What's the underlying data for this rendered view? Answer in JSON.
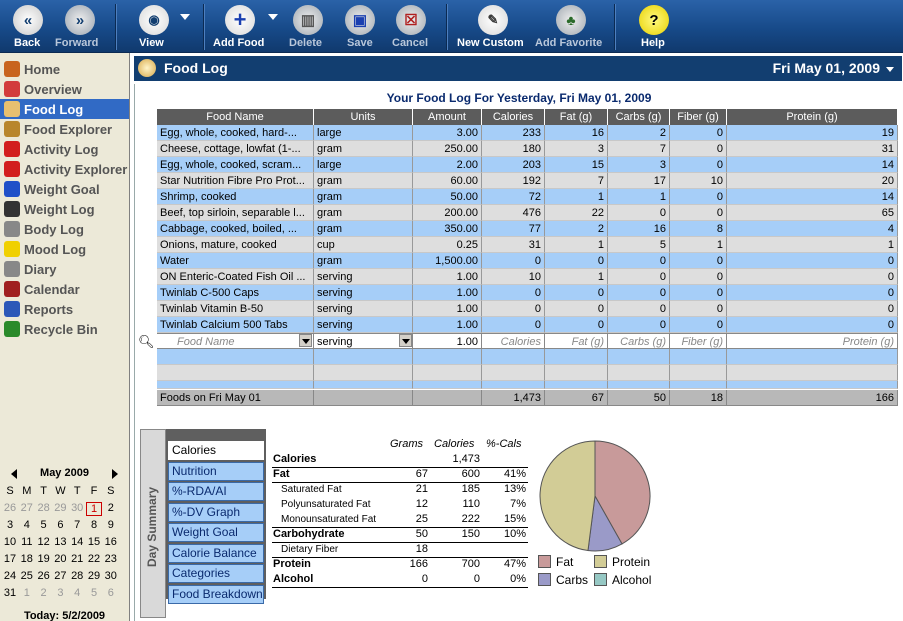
{
  "toolbar": {
    "back": "Back",
    "forward": "Forward",
    "view": "View",
    "add_food": "Add Food",
    "delete": "Delete",
    "save": "Save",
    "cancel": "Cancel",
    "new_custom": "New Custom",
    "add_favorite": "Add Favorite",
    "help": "Help"
  },
  "sidebar": {
    "items": [
      {
        "label": "Home",
        "icon": "home-icon",
        "color": "#c8641e"
      },
      {
        "label": "Overview",
        "icon": "overview-pie-icon",
        "color": "#d23c3c"
      },
      {
        "label": "Food Log",
        "icon": "bowl-icon",
        "color": "#e8c070"
      },
      {
        "label": "Food Explorer",
        "icon": "food-search-icon",
        "color": "#b8862c"
      },
      {
        "label": "Activity Log",
        "icon": "runner-icon",
        "color": "#d21e1e"
      },
      {
        "label": "Activity Explorer",
        "icon": "runner-search-icon",
        "color": "#d21e1e"
      },
      {
        "label": "Weight Goal",
        "icon": "target-icon",
        "color": "#2050c8"
      },
      {
        "label": "Weight Log",
        "icon": "scale-icon",
        "color": "#333333"
      },
      {
        "label": "Body Log",
        "icon": "body-icon",
        "color": "#888888"
      },
      {
        "label": "Mood Log",
        "icon": "smiley-icon",
        "color": "#f0d000"
      },
      {
        "label": "Diary",
        "icon": "diary-icon",
        "color": "#888888"
      },
      {
        "label": "Calendar",
        "icon": "calendar-icon",
        "color": "#a02020"
      },
      {
        "label": "Reports",
        "icon": "reports-icon",
        "color": "#2c58b8"
      },
      {
        "label": "Recycle Bin",
        "icon": "recycle-icon",
        "color": "#2a8a2a"
      }
    ],
    "selected_index": 2
  },
  "calendar": {
    "month": "May 2009",
    "weekdays": [
      "S",
      "M",
      "T",
      "W",
      "T",
      "F",
      "S"
    ],
    "weeks": [
      [
        "26",
        "27",
        "28",
        "29",
        "30",
        "1",
        "2"
      ],
      [
        "3",
        "4",
        "5",
        "6",
        "7",
        "8",
        "9"
      ],
      [
        "10",
        "11",
        "12",
        "13",
        "14",
        "15",
        "16"
      ],
      [
        "17",
        "18",
        "19",
        "20",
        "21",
        "22",
        "23"
      ],
      [
        "24",
        "25",
        "26",
        "27",
        "28",
        "29",
        "30"
      ],
      [
        "31",
        "1",
        "2",
        "3",
        "4",
        "5",
        "6"
      ]
    ],
    "today_label": "Today: 5/2/2009"
  },
  "titlebar": {
    "title": "Food Log",
    "date": "Fri May 01, 2009"
  },
  "log": {
    "heading": "Your Food Log For Yesterday, Fri May 01, 2009",
    "columns": [
      "Food Name",
      "Units",
      "Amount",
      "Calories",
      "Fat (g)",
      "Carbs (g)",
      "Fiber (g)",
      "Protein (g)"
    ],
    "rows": [
      [
        "Egg, whole, cooked, hard-...",
        "large",
        "3.00",
        "233",
        "16",
        "2",
        "0",
        "19"
      ],
      [
        "Cheese, cottage, lowfat (1-...",
        "gram",
        "250.00",
        "180",
        "3",
        "7",
        "0",
        "31"
      ],
      [
        "Egg, whole, cooked, scram...",
        "large",
        "2.00",
        "203",
        "15",
        "3",
        "0",
        "14"
      ],
      [
        "Star Nutrition Fibre Pro Prot...",
        "gram",
        "60.00",
        "192",
        "7",
        "17",
        "10",
        "20"
      ],
      [
        "Shrimp, cooked",
        "gram",
        "50.00",
        "72",
        "1",
        "1",
        "0",
        "14"
      ],
      [
        "Beef, top sirloin, separable l...",
        "gram",
        "200.00",
        "476",
        "22",
        "0",
        "0",
        "65"
      ],
      [
        "Cabbage, cooked, boiled, ...",
        "gram",
        "350.00",
        "77",
        "2",
        "16",
        "8",
        "4"
      ],
      [
        "Onions, mature, cooked",
        "cup",
        "0.25",
        "31",
        "1",
        "5",
        "1",
        "1"
      ],
      [
        "Water",
        "gram",
        "1,500.00",
        "0",
        "0",
        "0",
        "0",
        "0"
      ],
      [
        "ON Enteric-Coated Fish Oil ...",
        "serving",
        "1.00",
        "10",
        "1",
        "0",
        "0",
        "0"
      ],
      [
        "Twinlab C-500 Caps",
        "serving",
        "1.00",
        "0",
        "0",
        "0",
        "0",
        "0"
      ],
      [
        "Twinlab Vitamin B-50",
        "serving",
        "1.00",
        "0",
        "0",
        "0",
        "0",
        "0"
      ],
      [
        "Twinlab Calcium 500 Tabs",
        "serving",
        "1.00",
        "0",
        "0",
        "0",
        "0",
        "0"
      ]
    ],
    "entry": {
      "food_placeholder": "Food Name",
      "units": "serving",
      "amount": "1.00",
      "calories": "Calories",
      "fat": "Fat (g)",
      "carbs": "Carbs (g)",
      "fiber": "Fiber (g)",
      "protein": "Protein (g)"
    },
    "totals": [
      "Foods on Fri May 01",
      "",
      "",
      "1,473",
      "67",
      "50",
      "18",
      "166"
    ]
  },
  "day_summary": {
    "label": "Day Summary",
    "tabs": [
      "Calories",
      "Nutrition",
      "%-RDA/AI Graph",
      "%-DV Graph",
      "Weight Goal",
      "Calorie Balance",
      "Categories",
      "Food Breakdown"
    ],
    "selected_tab": 0,
    "headers": {
      "grams": "Grams",
      "calories": "Calories",
      "pct": "%-Cals"
    },
    "rows": [
      {
        "label": "Calories",
        "bold": true,
        "indent": false,
        "grams": "",
        "cal": "1,473",
        "pct": ""
      },
      {
        "label": "Fat",
        "bold": true,
        "indent": false,
        "grams": "67",
        "cal": "600",
        "pct": "41%"
      },
      {
        "label": "Saturated Fat",
        "bold": false,
        "indent": true,
        "grams": "21",
        "cal": "185",
        "pct": "13%"
      },
      {
        "label": "Polyunsaturated Fat",
        "bold": false,
        "indent": true,
        "grams": "12",
        "cal": "110",
        "pct": "7%"
      },
      {
        "label": "Monounsaturated Fat",
        "bold": false,
        "indent": true,
        "grams": "25",
        "cal": "222",
        "pct": "15%"
      },
      {
        "label": "Carbohydrate",
        "bold": true,
        "indent": false,
        "grams": "50",
        "cal": "150",
        "pct": "10%"
      },
      {
        "label": "Dietary Fiber",
        "bold": false,
        "indent": true,
        "grams": "18",
        "cal": "",
        "pct": ""
      },
      {
        "label": "Protein",
        "bold": true,
        "indent": false,
        "grams": "166",
        "cal": "700",
        "pct": "47%"
      },
      {
        "label": "Alcohol",
        "bold": true,
        "indent": false,
        "grams": "0",
        "cal": "0",
        "pct": "0%"
      }
    ],
    "legend": [
      {
        "label": "Fat",
        "color": "#c89a9a"
      },
      {
        "label": "Protein",
        "color": "#d2cc96"
      },
      {
        "label": "Carbs",
        "color": "#9a9ac8"
      },
      {
        "label": "Alcohol",
        "color": "#96c8c4"
      }
    ]
  },
  "chart_data": {
    "type": "pie",
    "categories": [
      "Fat",
      "Carbs",
      "Protein",
      "Alcohol"
    ],
    "values": [
      41,
      10,
      47,
      0
    ],
    "colors": [
      "#c89a9a",
      "#9a9ac8",
      "#d2cc96",
      "#96c8c4"
    ]
  }
}
